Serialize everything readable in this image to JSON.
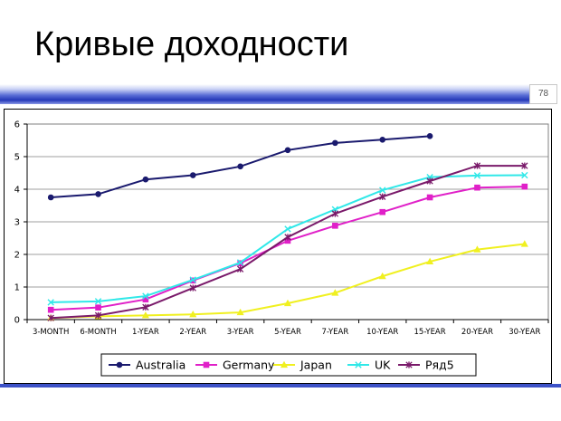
{
  "slide": {
    "title": "Кривые доходности",
    "page_number": "78"
  },
  "chart_data": {
    "type": "line",
    "title": "",
    "xlabel": "",
    "ylabel": "",
    "categories": [
      "3-MONTH",
      "6-MONTH",
      "1-YEAR",
      "2-YEAR",
      "3-YEAR",
      "5-YEAR",
      "7-YEAR",
      "10-YEAR",
      "15-YEAR",
      "20-YEAR",
      "30-YEAR"
    ],
    "ylim": [
      0,
      6
    ],
    "yticks": [
      "0",
      "1",
      "2",
      "3",
      "4",
      "5",
      "6"
    ],
    "grid": true,
    "legend_position": "bottom",
    "series": [
      {
        "name": "Australia",
        "color": "#1a1a6e",
        "marker": "circle",
        "values": [
          3.75,
          3.85,
          4.3,
          4.43,
          4.7,
          5.2,
          5.42,
          5.52,
          5.63,
          null,
          null
        ]
      },
      {
        "name": "Germany",
        "color": "#e020c8",
        "marker": "square",
        "values": [
          0.3,
          0.37,
          0.62,
          1.2,
          1.73,
          2.42,
          2.88,
          3.3,
          3.75,
          4.05,
          4.08
        ]
      },
      {
        "name": "Japan",
        "color": "#f0f020",
        "marker": "triangle",
        "values": [
          0.05,
          0.1,
          0.13,
          0.16,
          0.22,
          0.5,
          0.82,
          1.33,
          1.78,
          2.15,
          2.32
        ]
      },
      {
        "name": "UK",
        "color": "#30e8e8",
        "marker": "x",
        "values": [
          0.53,
          0.56,
          0.72,
          1.22,
          1.75,
          2.78,
          3.38,
          3.97,
          4.37,
          4.42,
          4.43
        ]
      },
      {
        "name": "Ряд5",
        "color": "#7a1a6a",
        "marker": "star",
        "values": [
          0.05,
          0.13,
          0.38,
          0.97,
          1.55,
          2.53,
          3.25,
          3.77,
          4.25,
          4.72,
          4.72
        ]
      }
    ]
  }
}
